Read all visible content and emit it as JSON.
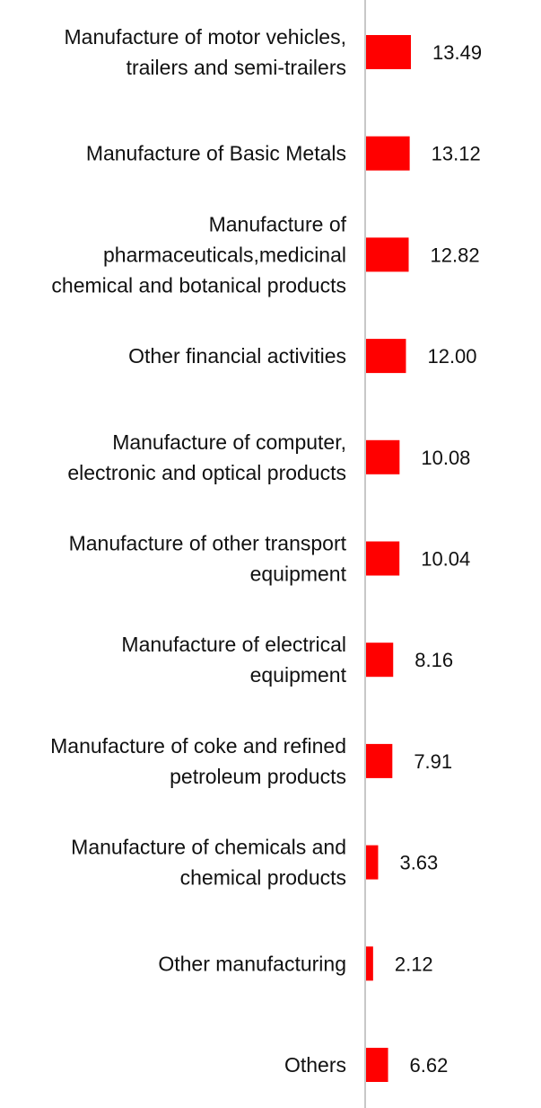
{
  "chart_data": {
    "type": "bar",
    "orientation": "horizontal",
    "title": "",
    "xlabel": "",
    "ylabel": "",
    "grid": false,
    "legend": "none",
    "bar_color": "#ff0000",
    "axis_color": "#c8c8c8",
    "categories": [
      "Manufacture of motor vehicles,\ntrailers and semi-trailers",
      "Manufacture of Basic Metals",
      "Manufacture of\npharmaceuticals,medicinal\nchemical and botanical products",
      "Other financial activities",
      "Manufacture of computer,\nelectronic and optical products",
      "Manufacture of other transport\nequipment",
      "Manufacture of electrical\nequipment",
      "Manufacture of coke and refined\npetroleum products",
      "Manufacture of chemicals and\nchemical products",
      "Other manufacturing",
      "Others"
    ],
    "values": [
      13.49,
      13.12,
      12.82,
      12.0,
      10.08,
      10.04,
      8.16,
      7.91,
      3.63,
      2.12,
      6.62
    ],
    "value_labels": [
      "13.49",
      "13.12",
      "12.82",
      "12.00",
      "10.08",
      "10.04",
      "8.16",
      "7.91",
      "3.63",
      "2.12",
      "6.62"
    ],
    "xlim": [
      0,
      13.49
    ]
  }
}
